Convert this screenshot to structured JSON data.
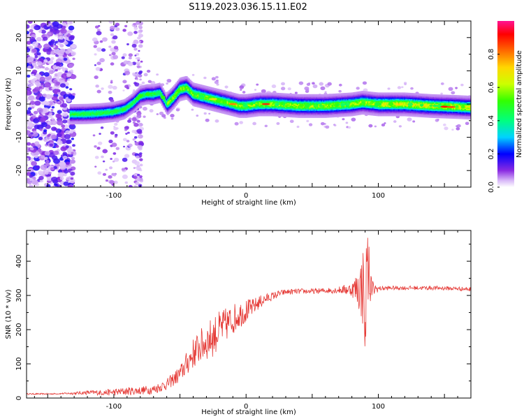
{
  "figure": {
    "title": "S119.2023.036.15.11.E02"
  },
  "chart_data": [
    {
      "type": "heatmap",
      "xlabel": "Height of straight line (km)",
      "ylabel": "Frequency (Hz)",
      "xlim": [
        -166,
        170
      ],
      "ylim": [
        -25,
        25
      ],
      "xticks": [
        -100,
        0,
        100
      ],
      "yticks": [
        -20,
        -10,
        0,
        10,
        20
      ],
      "colorbar": {
        "label": "Normalized spectral amplitude",
        "range": [
          0,
          1
        ],
        "ticks": [
          0.0,
          0.2,
          0.4,
          0.6,
          0.8
        ]
      },
      "ridge": {
        "x": [
          -133,
          -120,
          -110,
          -100,
          -92,
          -85,
          -80,
          -75,
          -70,
          -65,
          -60,
          -55,
          -50,
          -45,
          -40,
          -35,
          -30,
          -25,
          -20,
          -15,
          -10,
          -5,
          0,
          10,
          20,
          40,
          60,
          80,
          88,
          100,
          120,
          140,
          160,
          170
        ],
        "frequency": [
          -3.0,
          -2.9,
          -2.7,
          -2.3,
          -1.5,
          0.5,
          2.5,
          3.0,
          3.0,
          3.5,
          0.0,
          2.0,
          4.5,
          5.0,
          3.0,
          2.5,
          2.0,
          1.5,
          1.0,
          0.5,
          0.0,
          -0.5,
          -0.5,
          0.0,
          0.0,
          -0.5,
          -0.5,
          0.0,
          0.5,
          0.0,
          0.0,
          -0.5,
          -0.8,
          -1.0
        ]
      }
    },
    {
      "type": "line",
      "xlabel": "Height of straight line (km)",
      "ylabel": "SNR (10 * v/v)",
      "xlim": [
        -166,
        170
      ],
      "ylim": [
        0,
        490
      ],
      "xticks": [
        -100,
        0,
        100
      ],
      "yticks": [
        0,
        100,
        200,
        300,
        400
      ],
      "series": [
        {
          "color": "#e53935",
          "x": [
            -166,
            -150,
            -140,
            -130,
            -120,
            -110,
            -100,
            -90,
            -80,
            -70,
            -60,
            -50,
            -45,
            -40,
            -35,
            -30,
            -25,
            -20,
            -15,
            -10,
            -5,
            0,
            5,
            10,
            15,
            20,
            25,
            30,
            40,
            50,
            60,
            70,
            80,
            85,
            90,
            93,
            95,
            100,
            110,
            120,
            130,
            140,
            150,
            160,
            170
          ],
          "y": [
            12,
            12,
            13,
            14,
            16,
            16,
            17,
            20,
            22,
            25,
            40,
            70,
            100,
            130,
            150,
            165,
            180,
            200,
            215,
            230,
            245,
            255,
            265,
            280,
            290,
            298,
            305,
            310,
            312,
            312,
            314,
            316,
            318,
            320,
            322,
            320,
            318,
            320,
            322,
            322,
            322,
            322,
            321,
            320,
            318
          ],
          "noise": [
            2,
            2,
            2,
            4,
            6,
            8,
            10,
            12,
            12,
            14,
            16,
            25,
            35,
            45,
            50,
            55,
            60,
            55,
            50,
            45,
            40,
            35,
            25,
            20,
            15,
            12,
            10,
            8,
            8,
            8,
            8,
            10,
            20,
            60,
            150,
            120,
            30,
            8,
            6,
            6,
            6,
            6,
            6,
            6,
            6
          ]
        }
      ]
    }
  ]
}
